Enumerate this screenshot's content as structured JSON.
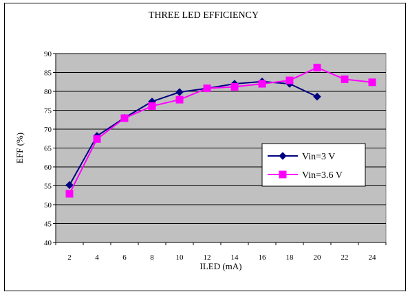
{
  "chart_data": {
    "type": "line",
    "title": "THREE LED EFFICIENCY",
    "xlabel": "ILED (mA)",
    "ylabel": "EFF (%)",
    "x": [
      2,
      4,
      6,
      8,
      10,
      12,
      14,
      16,
      18,
      20,
      22,
      24
    ],
    "xlim": [
      1,
      25
    ],
    "ylim": [
      40,
      90
    ],
    "yticks": [
      40,
      45,
      50,
      55,
      60,
      65,
      70,
      75,
      80,
      85,
      90
    ],
    "grid": true,
    "plot_background": "#c0c0c0",
    "legend_position": "right",
    "series": [
      {
        "name": "Vin=3 V",
        "color": "#000080",
        "marker": "diamond",
        "x": [
          2,
          4,
          6,
          8,
          10,
          12,
          14,
          16,
          18,
          20
        ],
        "values": [
          55.2,
          68.2,
          73.0,
          77.3,
          79.8,
          80.8,
          82.0,
          82.6,
          82.0,
          78.6
        ]
      },
      {
        "name": "Vin=3.6 V",
        "color": "#ff00ff",
        "marker": "square",
        "x": [
          2,
          4,
          6,
          8,
          10,
          12,
          14,
          16,
          18,
          20,
          22,
          24
        ],
        "values": [
          52.9,
          67.4,
          72.9,
          76.1,
          77.8,
          80.8,
          81.2,
          82.0,
          82.9,
          86.3,
          83.2,
          82.4
        ]
      }
    ]
  }
}
